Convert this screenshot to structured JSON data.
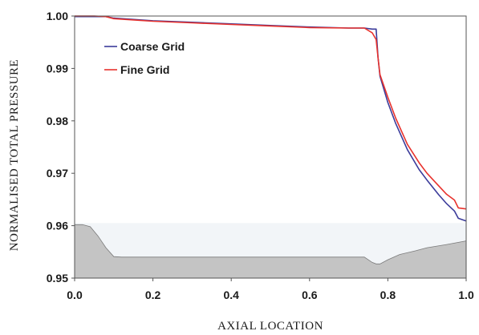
{
  "chart_data": {
    "type": "line",
    "title": "",
    "xlabel": "AXIAL LOCATION",
    "ylabel": "NORMALISED TOTAL PRESSURE",
    "xlim": [
      0.0,
      1.0
    ],
    "ylim": [
      0.95,
      1.0
    ],
    "x_ticks": [
      "0.0",
      "0.2",
      "0.4",
      "0.6",
      "0.8",
      "1.0"
    ],
    "y_ticks": [
      "0.95",
      "0.96",
      "0.97",
      "0.98",
      "0.99",
      "1.00"
    ],
    "grid": false,
    "legend_position": "top-left",
    "series": [
      {
        "name": "Coarse Grid",
        "color": "#3b3b9a",
        "x": [
          0.0,
          0.05,
          0.08,
          0.1,
          0.2,
          0.3,
          0.4,
          0.5,
          0.6,
          0.7,
          0.74,
          0.76,
          0.77,
          0.775,
          0.78,
          0.8,
          0.82,
          0.85,
          0.88,
          0.9,
          0.93,
          0.95,
          0.97,
          0.98,
          1.0
        ],
        "y": [
          0.9999,
          0.9999,
          0.9999,
          0.9996,
          0.9991,
          0.9988,
          0.9985,
          0.9982,
          0.9979,
          0.9977,
          0.9977,
          0.9975,
          0.9975,
          0.992,
          0.9885,
          0.9835,
          0.9795,
          0.9745,
          0.9707,
          0.9687,
          0.9659,
          0.9642,
          0.9628,
          0.9614,
          0.9609
        ]
      },
      {
        "name": "Fine Grid",
        "color": "#e8322d",
        "x": [
          0.0,
          0.05,
          0.08,
          0.1,
          0.2,
          0.3,
          0.4,
          0.5,
          0.6,
          0.7,
          0.74,
          0.76,
          0.77,
          0.775,
          0.78,
          0.8,
          0.82,
          0.85,
          0.88,
          0.9,
          0.93,
          0.95,
          0.97,
          0.98,
          1.0
        ],
        "y": [
          1.0,
          1.0,
          0.9999,
          0.9995,
          0.999,
          0.9987,
          0.9984,
          0.9981,
          0.9978,
          0.9977,
          0.9977,
          0.9968,
          0.9955,
          0.992,
          0.9888,
          0.9845,
          0.9805,
          0.9755,
          0.972,
          0.97,
          0.9676,
          0.966,
          0.9649,
          0.9634,
          0.9632
        ]
      }
    ],
    "area": {
      "fill": "#c4c4c4",
      "x": [
        0.0,
        0.02,
        0.04,
        0.06,
        0.08,
        0.1,
        0.12,
        0.3,
        0.5,
        0.7,
        0.74,
        0.76,
        0.77,
        0.78,
        0.8,
        0.83,
        0.87,
        0.9,
        0.95,
        1.0
      ],
      "y": [
        0.9602,
        0.9602,
        0.9598,
        0.958,
        0.9558,
        0.9541,
        0.954,
        0.954,
        0.954,
        0.954,
        0.954,
        0.953,
        0.9527,
        0.9527,
        0.9535,
        0.9545,
        0.9552,
        0.9558,
        0.9564,
        0.9571
      ]
    },
    "band": {
      "fill": "#f2f5f8",
      "y_from": 0.95,
      "y_to": 0.9605
    }
  }
}
